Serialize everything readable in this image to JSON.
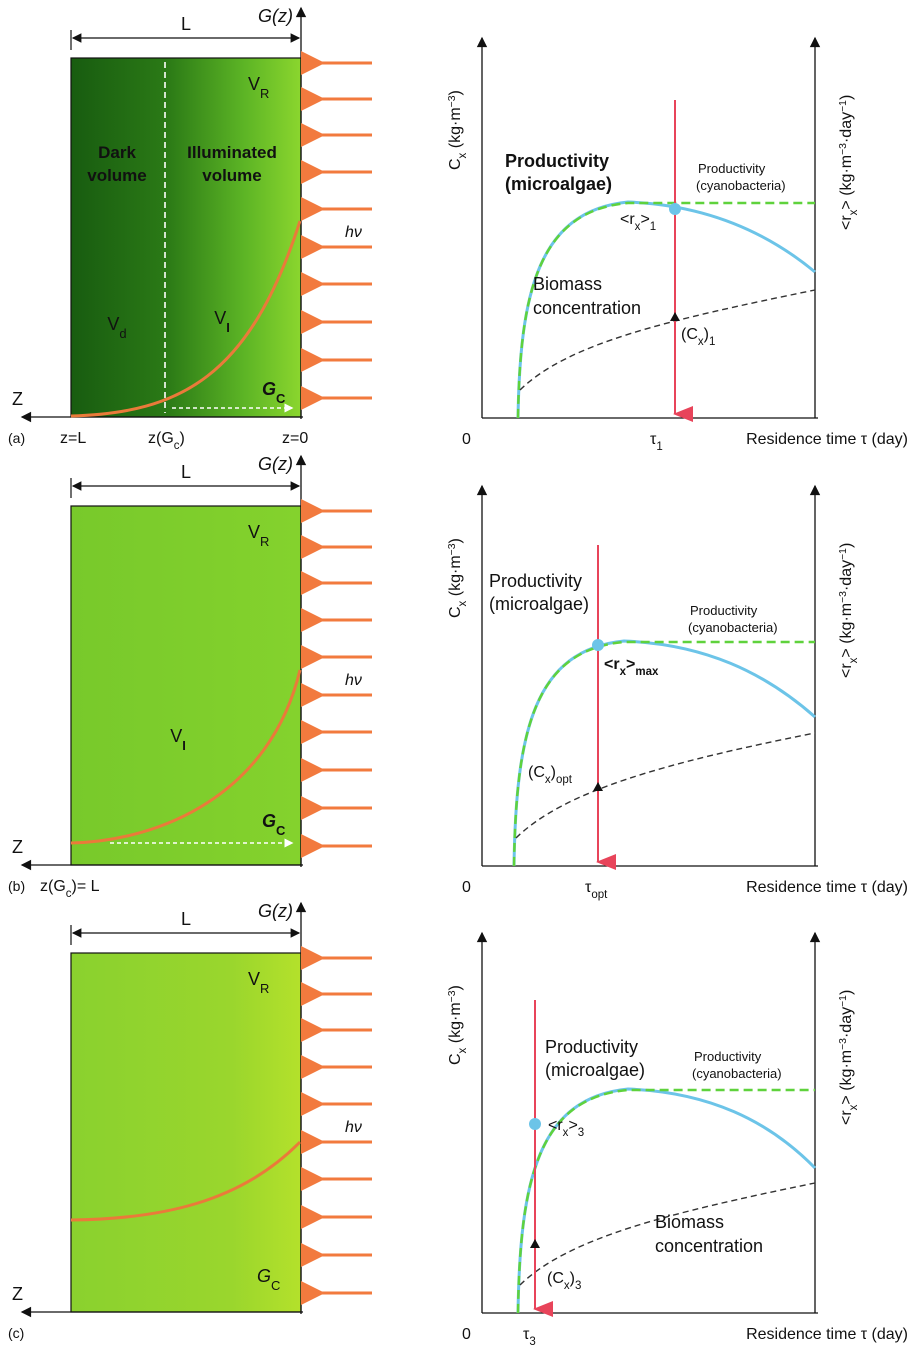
{
  "panels": [
    {
      "id": "a",
      "tag": "(a)",
      "left": {
        "L": "L",
        "G_axis": "G(z)",
        "VR": "V",
        "VR_sub": "R",
        "dark_label_1": "Dark",
        "dark_label_2": "volume",
        "illum_label_1": "Illuminated",
        "illum_label_2": "volume",
        "hv": "hν",
        "Vd": "V",
        "Vd_sub": "d",
        "VI": "V",
        "VI_sub": "I",
        "GC": "G",
        "GC_sub": "C",
        "Z": "Z",
        "zL": "z=L",
        "zGc": "z(G",
        "zGc_sub": "c",
        "zGc_end": ")",
        "z0": "z=0"
      },
      "right": {
        "yleft": "C",
        "yleft_sub": "x",
        "yleft_units": " (kg·m",
        "yleft_exp": "−3",
        "yleft_close": ")",
        "yright": "<r",
        "yright_sub": "x",
        "yright_units": "> (kg·m",
        "yright_exp": "−3",
        "yright_mid": "·day",
        "yright_exp2": "−1",
        "yright_close": ")",
        "zero": "0",
        "prod_micro_1": "Productivity",
        "prod_micro_2": "(microalgae)",
        "prod_cyano_1": "Productivity",
        "prod_cyano_2": "(cyanobacteria)",
        "rx_label": "<r",
        "rx_sub": "x",
        "rx_close": ">",
        "rx_index": "1",
        "biomass_1": "Biomass",
        "biomass_2": "concentration",
        "cx_label": "(C",
        "cx_sub": "x",
        "cx_close": ")",
        "cx_index": "1",
        "tau": "τ",
        "tau_sub": "1",
        "xlabel": "Residence time τ (day)"
      }
    },
    {
      "id": "b",
      "tag": "(b)",
      "left": {
        "L": "L",
        "G_axis": "G(z)",
        "VR": "V",
        "VR_sub": "R",
        "hv": "hν",
        "VI": "V",
        "VI_sub": "I",
        "GC": "G",
        "GC_sub": "C",
        "Z": "Z",
        "zGcL": "z(G",
        "zGcL_sub": "c",
        "zGcL_end": ")= L"
      },
      "right": {
        "yleft": "C",
        "yleft_sub": "x",
        "yleft_units": " (kg·m",
        "yleft_exp": "−3",
        "yleft_close": ")",
        "yright": "<r",
        "yright_sub": "x",
        "yright_units": "> (kg·m",
        "yright_exp": "−3",
        "yright_mid": "·day",
        "yright_exp2": "−1",
        "yright_close": ")",
        "zero": "0",
        "prod_micro_1": "Productivity",
        "prod_micro_2": "(microalgae)",
        "prod_cyano_1": "Productivity",
        "prod_cyano_2": "(cyanobacteria)",
        "rx_label": "<r",
        "rx_sub": "x",
        "rx_close": ">",
        "rx_index": "max",
        "cx_label": "(C",
        "cx_sub": "x",
        "cx_close": ")",
        "cx_index": "opt",
        "tau": "τ",
        "tau_sub": "opt",
        "xlabel": "Residence time τ (day)"
      }
    },
    {
      "id": "c",
      "tag": "(c)",
      "left": {
        "L": "L",
        "G_axis": "G(z)",
        "VR": "V",
        "VR_sub": "R",
        "hv": "hν",
        "GC": "G",
        "GC_sub": "C",
        "Z": "Z"
      },
      "right": {
        "yleft": "C",
        "yleft_sub": "x",
        "yleft_units": " (kg·m",
        "yleft_exp": "−3",
        "yleft_close": ")",
        "yright": "<r",
        "yright_sub": "x",
        "yright_units": "> (kg·m",
        "yright_exp": "−3",
        "yright_mid": "·day",
        "yright_exp2": "−1",
        "yright_close": ")",
        "zero": "0",
        "prod_micro_1": "Productivity",
        "prod_micro_2": "(microalgae)",
        "prod_cyano_1": "Productivity",
        "prod_cyano_2": "(cyanobacteria)",
        "rx_label": "<r",
        "rx_sub": "x",
        "rx_close": ">",
        "rx_index": "3",
        "biomass_1": "Biomass",
        "biomass_2": "concentration",
        "cx_label": "(C",
        "cx_sub": "x",
        "cx_close": ")",
        "cx_index": "3",
        "tau": "τ",
        "tau_sub": "3",
        "xlabel": "Residence time τ (day)"
      }
    }
  ],
  "colors": {
    "dark_green": "#1d6a12",
    "light_green": "#7fd12e",
    "bright_green": "#a3dd2a",
    "arrow_orange": "#f27a3e",
    "curve_orange": "#ea7a3a",
    "productivity_blue": "#6cc4e8",
    "cyano_dash_green": "#5fd23c",
    "residence_red": "#e8445a"
  }
}
